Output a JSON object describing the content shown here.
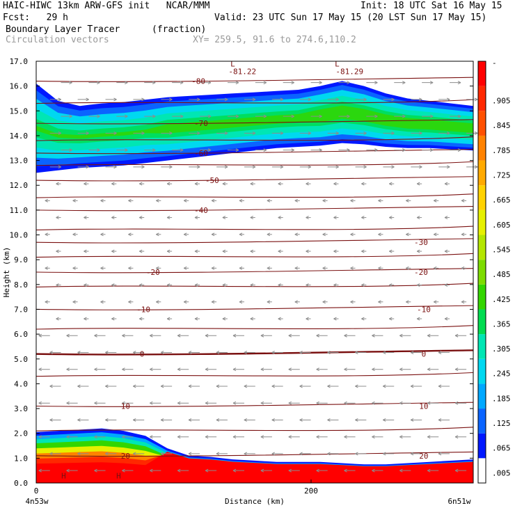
{
  "header": {
    "title_left": "HAIC-HIWC 13km ARW-GFS init   NCAR/MMM",
    "init": "Init: 18 UTC Sat 16 May 15",
    "fcst": "Fcst:   29 h",
    "valid": "Valid: 23 UTC Sun 17 May 15 (20 LST Sun 17 May 15)",
    "field": "Boundary Layer Tracer",
    "field_units": "(fraction)",
    "vectors": "Circulation vectors",
    "xy": "XY= 259.5, 91.6 to 274.6,110.2"
  },
  "chart_data": {
    "type": "heatmap",
    "title": "Boundary Layer Tracer",
    "units": "(fraction)",
    "ylabel": "Height (km)",
    "xlabel": "Distance (km)",
    "ylim": [
      0,
      17
    ],
    "xlim": [
      0,
      318
    ],
    "y_ticks": [
      "0.0",
      "1.0",
      "2.0",
      "3.0",
      "4.0",
      "5.0",
      "6.0",
      "7.0",
      "8.0",
      "9.0",
      "10.0",
      "11.0",
      "12.0",
      "13.0",
      "14.0",
      "15.0",
      "16.0",
      "17.0"
    ],
    "x_ticks": [
      {
        "value": 0,
        "label": "0"
      },
      {
        "value": 200,
        "label": "200"
      }
    ],
    "x_left_label": "4n53w",
    "x_right_label": "6n51w",
    "colorbar": {
      "labels": [
        ".005",
        ".065",
        ".125",
        ".185",
        ".245",
        ".305",
        ".365",
        ".425",
        ".485",
        ".545",
        ".605",
        ".665",
        ".725",
        ".785",
        ".845",
        ".905"
      ],
      "top_label": "-",
      "colors": [
        "#ffffff",
        "#0018ff",
        "#0a64ff",
        "#00a8ff",
        "#00d8f0",
        "#00e6b4",
        "#00dc50",
        "#33d600",
        "#7ddc00",
        "#b4e600",
        "#e6f000",
        "#ffd200",
        "#ffaa00",
        "#ff8200",
        "#ff5000",
        "#ff2800",
        "#ff0000"
      ]
    },
    "isotherm_labels": [
      {
        "text": "-80",
        "x": 118,
        "y": 16.2
      },
      {
        "text": "-81.22",
        "x": 150,
        "y": 16.6
      },
      {
        "text": "-81.29",
        "x": 228,
        "y": 16.6
      },
      {
        "text": "-70",
        "x": 120,
        "y": 14.5
      },
      {
        "text": "-60",
        "x": 120,
        "y": 13.3
      },
      {
        "text": "-50",
        "x": 128,
        "y": 12.2
      },
      {
        "text": "-40",
        "x": 120,
        "y": 11.0
      },
      {
        "text": "-30",
        "x": 280,
        "y": 9.7
      },
      {
        "text": "-20",
        "x": 85,
        "y": 8.5
      },
      {
        "text": "-20",
        "x": 280,
        "y": 8.5
      },
      {
        "text": "-10",
        "x": 78,
        "y": 7.0
      },
      {
        "text": "-10",
        "x": 282,
        "y": 7.0
      },
      {
        "text": "0",
        "x": 77,
        "y": 5.2
      },
      {
        "text": "0",
        "x": 282,
        "y": 5.2
      },
      {
        "text": "10",
        "x": 65,
        "y": 3.1
      },
      {
        "text": "10",
        "x": 282,
        "y": 3.1
      },
      {
        "text": "20",
        "x": 65,
        "y": 1.1
      },
      {
        "text": "20",
        "x": 282,
        "y": 1.1
      }
    ],
    "lows": [
      {
        "text": "L",
        "x": 143,
        "y": 16.9
      },
      {
        "text": "L",
        "x": 219,
        "y": 16.9
      }
    ],
    "highs": [
      {
        "text": "H",
        "x": 20,
        "y": 0.3
      },
      {
        "text": "H",
        "x": 60,
        "y": 0.3
      }
    ],
    "boundary_layer_top": [
      2.05,
      2.1,
      2.15,
      2.2,
      2.1,
      1.9,
      1.4,
      1.1,
      1.05,
      0.95,
      0.9,
      0.85,
      0.85,
      0.85,
      0.8,
      0.75,
      0.75,
      0.8,
      0.85,
      0.9,
      0.95
    ],
    "upper_layer_top": [
      16.1,
      15.4,
      15.2,
      15.3,
      15.35,
      15.45,
      15.55,
      15.6,
      15.65,
      15.7,
      15.75,
      15.8,
      15.85,
      16.0,
      16.2,
      16.0,
      15.7,
      15.5,
      15.4,
      15.3,
      15.2
    ],
    "upper_layer_bottom": [
      12.5,
      12.6,
      12.7,
      12.75,
      12.8,
      12.9,
      13.0,
      13.1,
      13.2,
      13.3,
      13.4,
      13.5,
      13.55,
      13.6,
      13.7,
      13.65,
      13.55,
      13.5,
      13.5,
      13.45,
      13.4
    ]
  }
}
